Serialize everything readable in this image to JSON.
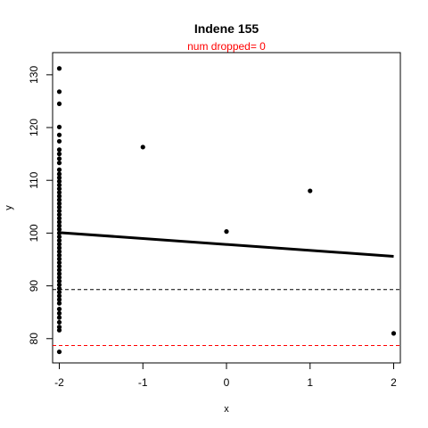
{
  "chart_data": {
    "type": "scatter",
    "title": "Indene 155",
    "subtitle": "num dropped= 0",
    "xlabel": "x",
    "ylabel": "y",
    "xlim": [
      -2.08,
      2.08
    ],
    "ylim": [
      75.4,
      134.2
    ],
    "xticks": [
      -2,
      -1,
      0,
      1,
      2
    ],
    "xtick_labels": [
      "-2",
      "-1",
      "0",
      "1",
      "2"
    ],
    "yticks": [
      80,
      90,
      100,
      110,
      120,
      130
    ],
    "ytick_labels": [
      "80",
      "90",
      "100",
      "110",
      "120",
      "130"
    ],
    "grid": false,
    "points": [
      {
        "x": -2,
        "y": 131.2
      },
      {
        "x": -2,
        "y": 126.8
      },
      {
        "x": -2,
        "y": 124.5
      },
      {
        "x": -2,
        "y": 120.1
      },
      {
        "x": -2,
        "y": 118.6
      },
      {
        "x": -2,
        "y": 117.4
      },
      {
        "x": -2,
        "y": 115.8
      },
      {
        "x": -2,
        "y": 115.0
      },
      {
        "x": -2,
        "y": 114.1
      },
      {
        "x": -2,
        "y": 113.3
      },
      {
        "x": -2,
        "y": 112.0
      },
      {
        "x": -2,
        "y": 111.2
      },
      {
        "x": -2,
        "y": 110.5
      },
      {
        "x": -2,
        "y": 109.8
      },
      {
        "x": -2,
        "y": 109.1
      },
      {
        "x": -2,
        "y": 108.4
      },
      {
        "x": -2,
        "y": 107.7
      },
      {
        "x": -2,
        "y": 107.0
      },
      {
        "x": -2,
        "y": 106.3
      },
      {
        "x": -2,
        "y": 105.6
      },
      {
        "x": -2,
        "y": 104.9
      },
      {
        "x": -2,
        "y": 104.2
      },
      {
        "x": -2,
        "y": 103.5
      },
      {
        "x": -2,
        "y": 102.8
      },
      {
        "x": -2,
        "y": 102.1
      },
      {
        "x": -2,
        "y": 101.4
      },
      {
        "x": -2,
        "y": 100.7
      },
      {
        "x": -2,
        "y": 100.0
      },
      {
        "x": -2,
        "y": 99.3
      },
      {
        "x": -2,
        "y": 98.6
      },
      {
        "x": -2,
        "y": 97.9
      },
      {
        "x": -2,
        "y": 97.2
      },
      {
        "x": -2,
        "y": 96.5
      },
      {
        "x": -2,
        "y": 95.8
      },
      {
        "x": -2,
        "y": 95.1
      },
      {
        "x": -2,
        "y": 94.4
      },
      {
        "x": -2,
        "y": 93.7
      },
      {
        "x": -2,
        "y": 93.0
      },
      {
        "x": -2,
        "y": 92.3
      },
      {
        "x": -2,
        "y": 91.6
      },
      {
        "x": -2,
        "y": 90.9
      },
      {
        "x": -2,
        "y": 90.2
      },
      {
        "x": -2,
        "y": 89.5
      },
      {
        "x": -2,
        "y": 88.8
      },
      {
        "x": -2,
        "y": 88.1
      },
      {
        "x": -2,
        "y": 87.4
      },
      {
        "x": -2,
        "y": 86.7
      },
      {
        "x": -2,
        "y": 85.6
      },
      {
        "x": -2,
        "y": 84.8
      },
      {
        "x": -2,
        "y": 84.0
      },
      {
        "x": -2,
        "y": 83.1
      },
      {
        "x": -2,
        "y": 82.2
      },
      {
        "x": -2,
        "y": 81.6
      },
      {
        "x": -2,
        "y": 77.5
      },
      {
        "x": -1,
        "y": 116.3
      },
      {
        "x": 0,
        "y": 100.3
      },
      {
        "x": 1,
        "y": 108.0
      },
      {
        "x": 2,
        "y": 81.0
      }
    ],
    "fit_line": {
      "x": [
        -2,
        2
      ],
      "y": [
        100.1,
        95.6
      ],
      "color": "#000000"
    },
    "hlines": [
      {
        "y": 89.3,
        "color": "#000000",
        "style": "dashed"
      },
      {
        "y": 78.7,
        "color": "#ff0000",
        "style": "dashed"
      }
    ],
    "point_color": "#000000"
  }
}
